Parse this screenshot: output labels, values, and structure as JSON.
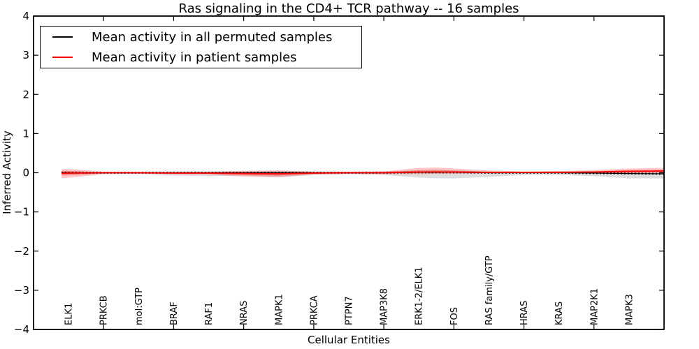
{
  "figure": {
    "title": "Ras signaling in the CD4+ TCR pathway -- 16 samples",
    "xlabel": "Cellular Entities",
    "ylabel": "Inferred Activity"
  },
  "legend": {
    "items": [
      {
        "label": "Mean activity in all permuted samples",
        "color": "#000000"
      },
      {
        "label": "Mean activity in patient samples",
        "color": "#ff0000"
      }
    ]
  },
  "chart_data": {
    "type": "line",
    "title": "Ras signaling in the CD4+ TCR pathway -- 16 samples",
    "xlabel": "Cellular Entities",
    "ylabel": "Inferred Activity",
    "grid": false,
    "legend_position": "upper left",
    "xlim": [
      0,
      18
    ],
    "ylim": [
      -4,
      4
    ],
    "yticks": [
      4,
      3,
      2,
      1,
      0,
      -1,
      -2,
      -3,
      -4
    ],
    "ytick_labels": [
      "4",
      "3",
      "2",
      "1",
      "0",
      "−1",
      "−2",
      "−3",
      "−4"
    ],
    "xticks": [
      2,
      4,
      6,
      8,
      10,
      12,
      14,
      16
    ],
    "entities": [
      "ELK1",
      "PRKCB",
      "mol:GTP",
      "BRAF",
      "RAF1",
      "NRAS",
      "MAPK1",
      "PRKCA",
      "PTPN7",
      "MAP3K8",
      "ERK1-2/ELK1",
      "FOS",
      "RAS family/GTP",
      "HRAS",
      "KRAS",
      "MAP2K1",
      "MAPK3"
    ],
    "entity_x": [
      1,
      2,
      3,
      4,
      5,
      6,
      7,
      8,
      9,
      10,
      11,
      12,
      13,
      14,
      15,
      16,
      17
    ],
    "x": [
      0.8,
      1,
      2,
      3,
      4,
      5,
      6,
      7,
      8,
      9,
      10,
      11,
      11.5,
      12,
      13,
      14,
      15,
      16,
      17,
      18
    ],
    "series": [
      {
        "name": "Mean activity in all permuted samples",
        "color": "#000000",
        "band_color": "rgba(0,0,0,0.13)",
        "mean": [
          0,
          0,
          0,
          0,
          0,
          0,
          0,
          0,
          0,
          0,
          0,
          0.01,
          0.01,
          0.01,
          0,
          0,
          0,
          -0.01,
          -0.02,
          -0.027
        ],
        "upper": [
          0.04,
          0.04,
          0.02,
          0.027,
          0.036,
          0.036,
          0.036,
          0.055,
          0.036,
          0.027,
          0.036,
          0.055,
          0.06,
          0.055,
          0.036,
          0.027,
          0.036,
          0.036,
          0.055,
          0.055
        ],
        "lower": [
          -0.04,
          -0.04,
          -0.02,
          -0.027,
          -0.07,
          -0.09,
          -0.07,
          -0.11,
          -0.055,
          -0.036,
          -0.055,
          -0.125,
          -0.14,
          -0.145,
          -0.11,
          -0.055,
          -0.055,
          -0.09,
          -0.145,
          -0.145
        ]
      },
      {
        "name": "Mean activity in patient samples",
        "color": "#ff0000",
        "band_color": "rgba(255,0,0,0.22)",
        "inner_band_color": "rgba(255,0,0,0.25)",
        "mean": [
          -0.018,
          -0.009,
          0,
          0,
          -0.009,
          -0.009,
          -0.018,
          -0.027,
          -0.009,
          0,
          0,
          0.018,
          0.02,
          0.018,
          0.009,
          0.009,
          0.009,
          0.018,
          0.036,
          0.045
        ],
        "upper": [
          0.09,
          0.1,
          0.027,
          0.018,
          0.018,
          0.027,
          0.05,
          0.055,
          0.027,
          0.027,
          0.036,
          0.125,
          0.135,
          0.11,
          0.055,
          0.036,
          0.045,
          0.07,
          0.11,
          0.125
        ],
        "lower": [
          -0.14,
          -0.13,
          -0.036,
          -0.027,
          -0.036,
          -0.045,
          -0.1,
          -0.115,
          -0.045,
          -0.027,
          -0.036,
          -0.036,
          -0.03,
          -0.027,
          -0.018,
          -0.009,
          -0.009,
          -0.009,
          -0.009,
          0
        ],
        "inner_upper": [
          0.045,
          0.05,
          0.009,
          0,
          0,
          0,
          0,
          0.009,
          0,
          0.009,
          0.018,
          0.07,
          0.075,
          0.06,
          0.027,
          0.018,
          0.027,
          0.04,
          0.07,
          0.08
        ],
        "inner_lower": [
          -0.07,
          -0.065,
          -0.018,
          -0.009,
          -0.018,
          -0.027,
          -0.06,
          -0.07,
          -0.027,
          -0.009,
          -0.018,
          -0.009,
          -0.005,
          0,
          0,
          0,
          0,
          0,
          0,
          0.009
        ]
      }
    ]
  }
}
